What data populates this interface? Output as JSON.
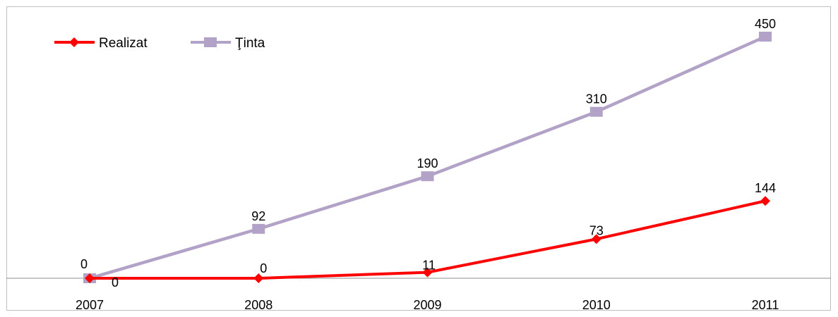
{
  "chart_data": {
    "type": "line",
    "categories": [
      "2007",
      "2008",
      "2009",
      "2010",
      "2011"
    ],
    "series": [
      {
        "name": "Realizat",
        "values": [
          0,
          0,
          11,
          73,
          144
        ],
        "color": "#ff0000",
        "marker": "diamond"
      },
      {
        "name": "Ţinta",
        "values": [
          0,
          92,
          190,
          310,
          450
        ],
        "color": "#b3a2c7",
        "marker": "square"
      }
    ],
    "ylim": [
      0,
      450
    ],
    "grid": false,
    "legend": "top-left",
    "data_labels": true
  }
}
